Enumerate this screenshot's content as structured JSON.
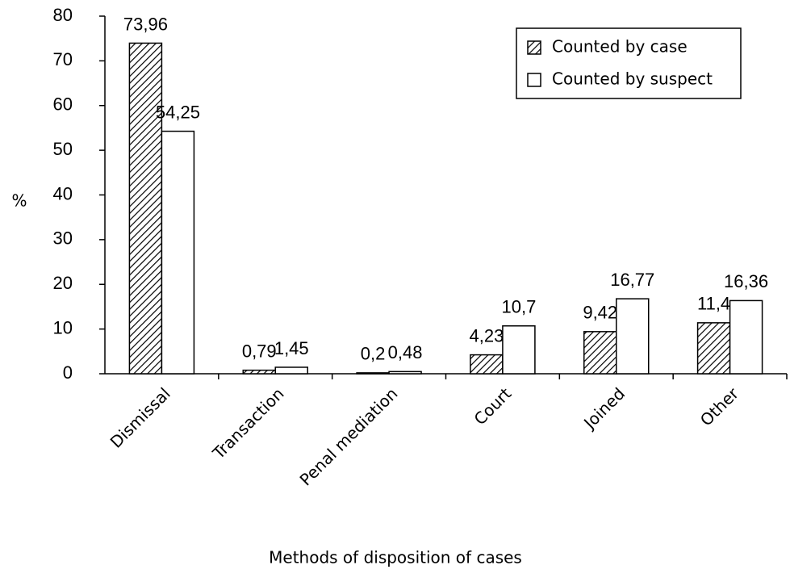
{
  "chart_data": {
    "type": "bar",
    "x_label": "Methods of disposition of cases",
    "y_label": "%",
    "categories": [
      "Dismissal",
      "Transaction",
      "Penal mediation",
      "Court",
      "Joined",
      "Other"
    ],
    "series": [
      {
        "name": "Counted by case",
        "color": "#ffffff",
        "pattern": "diagonal",
        "values": [
          73.96,
          0.79,
          0.2,
          4.23,
          9.42,
          11.4
        ],
        "value_labels": [
          "73,96",
          "0,79",
          "0,2",
          "4,23",
          "9,42",
          "11,4"
        ]
      },
      {
        "name": "Counted by suspect",
        "color": "#ffffff",
        "values": [
          54.25,
          1.45,
          0.48,
          10.7,
          16.77,
          16.36
        ],
        "value_labels": [
          "54,25",
          "1,45",
          "0,48",
          "10,7",
          "16,77",
          "16,36"
        ]
      }
    ],
    "ylim": [
      0,
      80
    ],
    "yticks": [
      0,
      10,
      20,
      30,
      40,
      50,
      60,
      70,
      80
    ],
    "legend": "upper right"
  }
}
